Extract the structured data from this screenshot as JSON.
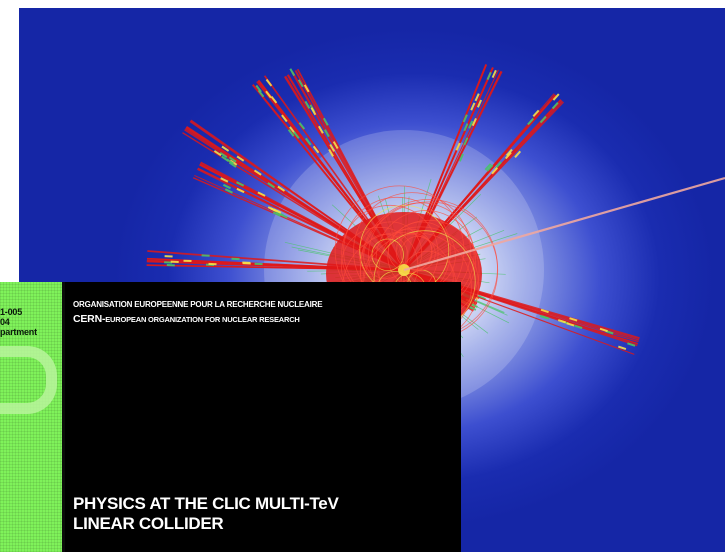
{
  "cover": {
    "organisation_fr": "ORGANISATION EUROPEENNE POUR LA RECHERCHE NUCLEAIRE",
    "organisation_en_prefix": "CERN-",
    "organisation_en": "EUROPEAN ORGANIZATION FOR NUCLEAR RESEARCH",
    "title_line1": "PHYSICS AT THE CLIC MULTI-TeV",
    "title_line2": "LINEAR COLLIDER",
    "strip_line1": "1-005",
    "strip_line2": "04",
    "strip_line3": "partment"
  },
  "colors": {
    "background_blue": "#1526a6",
    "core_glow": "#ffffff",
    "track_red": "#e01818",
    "track_yellow": "#f6e24a",
    "track_green": "#48c46a",
    "panel_black": "#000000",
    "strip_green": "#7ff25a"
  },
  "event_display": {
    "jets": [
      "jet-1",
      "jet-2",
      "jet-3",
      "jet-4",
      "jet-5",
      "jet-6",
      "jet-7",
      "jet-8",
      "jet-9"
    ],
    "beam_line": "beam-track"
  }
}
